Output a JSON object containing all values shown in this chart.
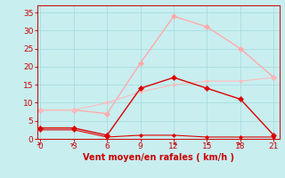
{
  "x": [
    0,
    3,
    6,
    9,
    12,
    15,
    18,
    21
  ],
  "rafales": [
    8,
    8,
    7,
    21,
    34,
    31,
    25,
    17
  ],
  "vent_moyen": [
    3,
    3,
    1,
    14,
    17,
    14,
    11,
    1
  ],
  "trend_light": [
    8,
    8,
    10,
    13,
    15,
    16,
    16,
    17
  ],
  "flat_dark": [
    2.5,
    2.5,
    0.5,
    1,
    1,
    0.5,
    0.5,
    0.5
  ],
  "xlabel": "Vent moyen/en rafales ( km/h )",
  "ylim": [
    0,
    37
  ],
  "xlim": [
    -0.3,
    21.5
  ],
  "yticks": [
    0,
    5,
    10,
    15,
    20,
    25,
    30,
    35
  ],
  "xticks": [
    0,
    3,
    6,
    9,
    12,
    15,
    18,
    21
  ],
  "color_rafales": "#ffaaaa",
  "color_vent": "#dd0000",
  "color_trend_light": "#ffbbbb",
  "color_flat_dark": "#dd0000",
  "bg_color": "#c8eef0",
  "grid_color": "#aadddd",
  "tick_color": "#cc0000",
  "label_color": "#cc0000",
  "marker_size": 3,
  "lw_main": 1.0,
  "lw_thin": 0.8
}
